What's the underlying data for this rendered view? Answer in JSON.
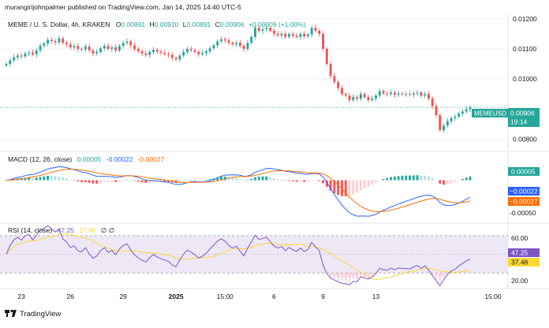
{
  "header": {
    "publisher": "murangirijohnpalmer published on TradingView.com, Jan 14, 2025 14:40 UTC-5",
    "symbol": "MEME / U. S. Dollar, 4h, KRAKEN",
    "ohlc": {
      "o_label": "O",
      "o": "0.00891",
      "h_label": "H",
      "h": "0.00910",
      "l_label": "L",
      "l": "0.00891",
      "c_label": "C",
      "c": "0.00906",
      "change": "+0.00009 (+1.00%)"
    }
  },
  "footer": {
    "brand": "TradingView"
  },
  "colors": {
    "up": "#26a69a",
    "down": "#ef5350",
    "macd": "#2962ff",
    "signal": "#ff6d00",
    "rsi": "#7e57c2",
    "rsi_ma": "#fdd835",
    "hist_up_strong": "#26a69a",
    "hist_up_weak": "#b2dfdb",
    "hist_down_strong": "#ff5252",
    "hist_down_weak": "#ffcdd2",
    "rsi_band": "#ede7f6"
  },
  "chart_data": [
    {
      "type": "candlestick",
      "name": "price",
      "x_ticks": [
        "23",
        "26",
        "29",
        "2025",
        "15:00",
        "6",
        "9",
        "13",
        "15:00"
      ],
      "y_ticks": [
        "0.01200",
        "0.01100",
        "0.01000",
        "0.00800"
      ],
      "ylim": [
        0.0077,
        0.0121
      ],
      "current_price": {
        "symbol": "MEMEUSD",
        "value": "0.00906",
        "countdown": "19:14"
      },
      "closes": [
        0.0105,
        0.01062,
        0.01072,
        0.01078,
        0.01075,
        0.01085,
        0.01088,
        0.01082,
        0.01095,
        0.0111,
        0.01118,
        0.0113,
        0.01126,
        0.01122,
        0.01135,
        0.0112,
        0.01115,
        0.01105,
        0.0111,
        0.011,
        0.01098,
        0.01108,
        0.01095,
        0.01085,
        0.0109,
        0.01102,
        0.0111,
        0.011,
        0.01105,
        0.01095,
        0.0111,
        0.0112,
        0.01125,
        0.01112,
        0.011,
        0.01092,
        0.01085,
        0.0108,
        0.0109,
        0.01097,
        0.01091,
        0.01087,
        0.01083,
        0.0108,
        0.0107,
        0.01065,
        0.01078,
        0.0109,
        0.011,
        0.01096,
        0.0109,
        0.01082,
        0.01086,
        0.01092,
        0.01102,
        0.01112,
        0.01125,
        0.01132,
        0.01128,
        0.0112,
        0.01115,
        0.0112,
        0.0111,
        0.011,
        0.0112,
        0.0114,
        0.0117,
        0.0116,
        0.01165,
        0.0117,
        0.0116,
        0.0115,
        0.01145,
        0.0115,
        0.0114,
        0.0115,
        0.01144,
        0.0114,
        0.0115,
        0.01142,
        0.01148,
        0.0117,
        0.0116,
        0.0115,
        0.011,
        0.0105,
        0.0101,
        0.0099,
        0.0097,
        0.0095,
        0.00945,
        0.0093,
        0.0094,
        0.00935,
        0.0095,
        0.0094,
        0.0093,
        0.00935,
        0.00945,
        0.0096,
        0.00952,
        0.0095,
        0.00955,
        0.00948,
        0.00952,
        0.0095,
        0.0095,
        0.00948,
        0.00952,
        0.00955,
        0.00945,
        0.0095,
        0.00935,
        0.0091,
        0.0088,
        0.0083,
        0.00845,
        0.0086,
        0.0087,
        0.00875,
        0.00885,
        0.00892,
        0.009,
        0.00906
      ]
    },
    {
      "type": "line",
      "name": "MACD",
      "title": "MACD (12, 26, close)",
      "values_label": [
        "0.00005",
        "-0.00022",
        "-0.00027"
      ],
      "y_ticks": [
        "-0.00050"
      ],
      "ylim": [
        -0.0006,
        0.00024
      ],
      "last": {
        "histogram": "0.00005",
        "macd": "−0.00022",
        "signal": "−0.00027"
      }
    },
    {
      "type": "line",
      "name": "RSI",
      "title": "RSI (14, close)",
      "values_label": [
        "47.25",
        "37.48"
      ],
      "extra_label": "∅ ∅",
      "y_ticks": [
        "60.00",
        "20.00"
      ],
      "ylim": [
        15,
        80
      ],
      "bands": [
        70,
        50,
        30
      ],
      "last": {
        "rsi": "47.25",
        "ma": "37.48"
      }
    }
  ]
}
